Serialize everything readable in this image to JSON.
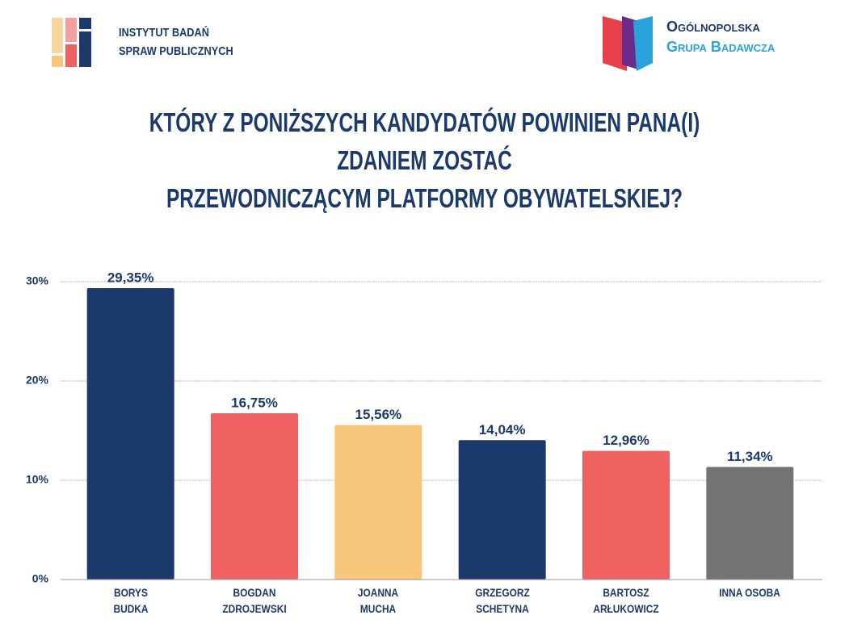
{
  "header": {
    "left": [
      "INSTYTUT BADAŃ",
      "SPRAW PUBLICZNYCH"
    ],
    "right": [
      "Ogólnopolska",
      "Grupa Badawcza"
    ]
  },
  "chart_data": {
    "type": "bar",
    "title": "KTÓRY Z PONIŻSZYCH KANDYDATÓW POWINIEN PANA(I) ZDANIEM ZOSTAĆ\nPRZEWODNICZĄCYM PLATFORMY OBYWATELSKIEJ?",
    "categories": [
      "BORYS\nBUDKA",
      "BOGDAN\nZDROJEWSKI",
      "JOANNA\nMUCHA",
      "GRZEGORZ\nSCHETYNA",
      "BARTOSZ\nARŁUKOWICZ",
      "INNA OSOBA"
    ],
    "values": [
      29.35,
      16.75,
      15.56,
      14.04,
      12.96,
      11.34
    ],
    "value_labels": [
      "29,35%",
      "16,75%",
      "15,56%",
      "14,04%",
      "12,96%",
      "11,34%"
    ],
    "colors": [
      "#1b3a6b",
      "#f06262",
      "#f7c67a",
      "#1b3a6b",
      "#f06262",
      "#737373"
    ],
    "ylim": [
      0,
      30
    ],
    "yticks": [
      {
        "value": 0,
        "label": "0%"
      },
      {
        "value": 10,
        "label": "10%"
      },
      {
        "value": 20,
        "label": "20%"
      },
      {
        "value": 30,
        "label": "30%"
      }
    ],
    "grid": true
  }
}
